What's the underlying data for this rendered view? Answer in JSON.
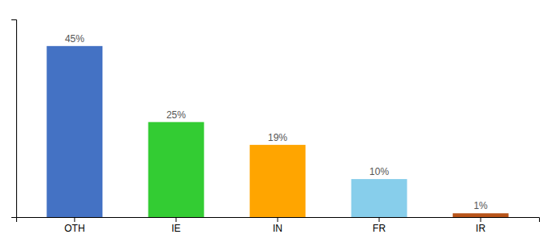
{
  "chart_data": {
    "type": "bar",
    "categories": [
      "OTH",
      "IE",
      "IN",
      "FR",
      "IR"
    ],
    "values": [
      45,
      25,
      19,
      10,
      1
    ],
    "value_labels": [
      "45%",
      "25%",
      "19%",
      "10%",
      "1%"
    ],
    "colors": [
      "#4472C4",
      "#33CC33",
      "#FFA500",
      "#87CEEB",
      "#B8541A"
    ],
    "ylim": [
      0,
      52
    ],
    "grid": false,
    "data_labels": true,
    "tick_labels": "x"
  }
}
